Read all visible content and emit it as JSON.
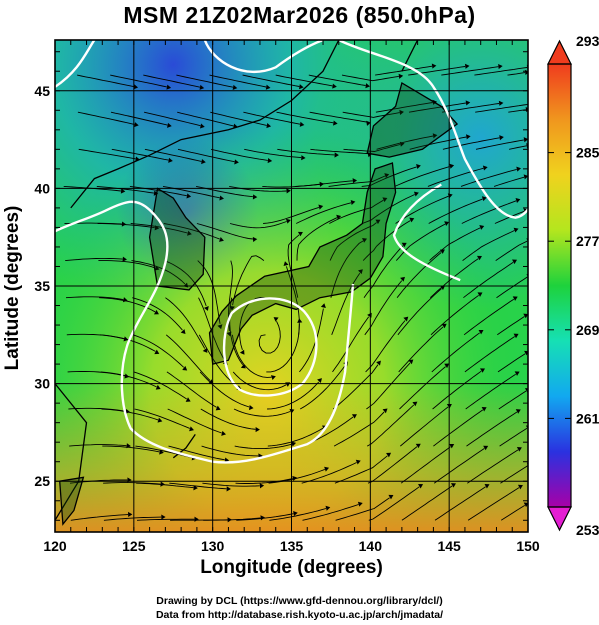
{
  "title": "MSM 21Z02Mar2026 (850.0hPa)",
  "axes": {
    "xlabel": "Longitude (degrees)",
    "ylabel": "Latitude  (degrees)",
    "xticks": [
      "120",
      "125",
      "130",
      "135",
      "140",
      "145",
      "150"
    ],
    "yticks": [
      "25",
      "30",
      "35",
      "40",
      "45"
    ],
    "xlim": [
      120,
      150
    ],
    "ylim": [
      22.4,
      47.6
    ],
    "grid": true
  },
  "colorbar": {
    "label_values": [
      "293",
      "285",
      "277",
      "269",
      "261",
      "253"
    ],
    "range": [
      253,
      293
    ],
    "orientation": "vertical",
    "colors": [
      "#a800a8",
      "#2a32e0",
      "#12a8f0",
      "#16e0b4",
      "#1ed23c",
      "#b4e61e",
      "#f0d21e",
      "#f0961e",
      "#f03c1e"
    ]
  },
  "credits": {
    "line1": "Drawing by DCL (https://www.gfd-dennou.org/library/dcl/)",
    "line2": "Data from http://database.rish.kyoto-u.ac.jp/arch/jmadata/"
  }
}
